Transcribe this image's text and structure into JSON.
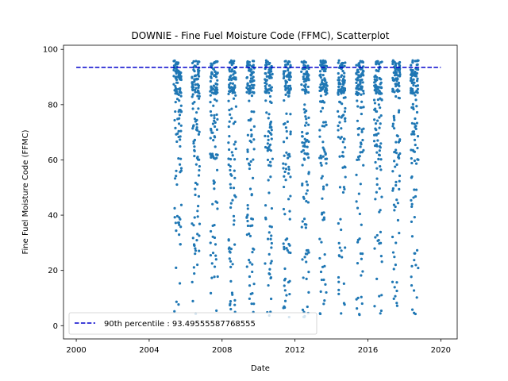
{
  "chart_data": {
    "type": "scatter",
    "title": "DOWNIE - Fine Fuel Moisture Code (FFMC), Scatterplot",
    "xlabel": "Date",
    "ylabel": "Fine Fuel Moisture Code (FFMC)",
    "xlim": [
      1999.3,
      2020.9
    ],
    "ylim": [
      -4.8,
      101.5
    ],
    "xticks": [
      "2000",
      "2004",
      "2008",
      "2012",
      "2016",
      "2020"
    ],
    "yticks": [
      "0",
      "20",
      "40",
      "60",
      "80",
      "100"
    ],
    "grid": false,
    "legend_position": "lower-left",
    "series": [
      {
        "name": "",
        "color": "#1f77b4",
        "seasons": [
          2005,
          2006,
          2007,
          2008,
          2009,
          2010,
          2011,
          2012,
          2013,
          2014,
          2015,
          2016,
          2017,
          2018
        ]
      }
    ],
    "reference_line": {
      "name": "90th percentile : 93.49555587768555",
      "value": 93.49555587768555,
      "x_range": [
        2000,
        2020
      ],
      "color": "#0000cc",
      "style": "dashed"
    },
    "legend": [
      {
        "label": "90th percentile : 93.49555587768555",
        "color": "#0000cc",
        "style": "dashed"
      }
    ]
  }
}
